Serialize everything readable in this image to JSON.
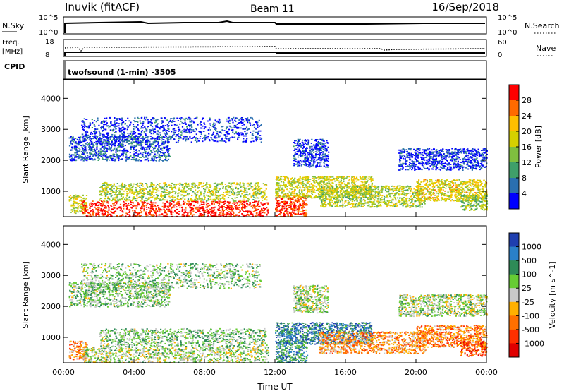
{
  "header": {
    "station": "Inuvik (fitACF)",
    "beam": "Beam 11",
    "date": "16/Sep/2018"
  },
  "top_panel": {
    "nsky_label": "N.Sky",
    "nsky_ticks": [
      "10^5",
      "10^0"
    ],
    "nsearch_label": "N.Search",
    "nsearch_ticks": [
      "10^5",
      "10^0"
    ],
    "freq_label": "Freq.",
    "freq_unit": "[MHz]",
    "freq_ticks": [
      "18",
      "8"
    ],
    "nave_label": "Nave",
    "nave_ticks": [
      "60",
      "0"
    ],
    "cpid_label": "CPID",
    "cpid_value": "twofsound (1-min) -3505"
  },
  "chart_data": [
    {
      "type": "heatmap",
      "name": "power",
      "ylabel": "Slant Range [km]",
      "xlabel": "",
      "ylim": [
        180,
        4600
      ],
      "yticks": [
        1000,
        2000,
        3000,
        4000
      ],
      "xlim": [
        0,
        24
      ],
      "x_ticks": [
        "00:00",
        "04:00",
        "08:00",
        "12:00",
        "16:00",
        "20:00",
        "00:00"
      ],
      "colorbar": {
        "label": "Power [dB]",
        "ticks": [
          "28",
          "24",
          "20",
          "16",
          "12",
          "8",
          "4"
        ],
        "colors": [
          "#ff0000",
          "#ff6a00",
          "#ffbf00",
          "#d6d100",
          "#7fbf3f",
          "#3f9f6a",
          "#2a6fb0",
          "#0000ff"
        ]
      },
      "regions": [
        {
          "t0": 0.3,
          "t1": 1.3,
          "r0": 300,
          "r1": 900,
          "level": 0.55
        },
        {
          "t0": 1.0,
          "t1": 11.6,
          "r0": 200,
          "r1": 700,
          "level": 0.95
        },
        {
          "t0": 2.0,
          "t1": 11.5,
          "r0": 700,
          "r1": 1300,
          "level": 0.5
        },
        {
          "t0": 0.3,
          "t1": 6.0,
          "r0": 2000,
          "r1": 2800,
          "level": 0.15
        },
        {
          "t0": 1.0,
          "t1": 11.2,
          "r0": 2600,
          "r1": 3400,
          "level": 0.1
        },
        {
          "t0": 12.0,
          "t1": 13.8,
          "r0": 200,
          "r1": 900,
          "level": 0.9
        },
        {
          "t0": 12.0,
          "t1": 17.5,
          "r0": 800,
          "r1": 1500,
          "level": 0.55
        },
        {
          "t0": 13.0,
          "t1": 15.0,
          "r0": 1800,
          "r1": 2700,
          "level": 0.1
        },
        {
          "t0": 14.5,
          "t1": 20.5,
          "r0": 500,
          "r1": 1200,
          "level": 0.5
        },
        {
          "t0": 20.0,
          "t1": 24.0,
          "r0": 700,
          "r1": 1400,
          "level": 0.6
        },
        {
          "t0": 19.0,
          "t1": 24.0,
          "r0": 1700,
          "r1": 2400,
          "level": 0.1
        },
        {
          "t0": 22.5,
          "t1": 24.0,
          "r0": 400,
          "r1": 900,
          "level": 0.45
        }
      ]
    },
    {
      "type": "heatmap",
      "name": "velocity",
      "ylabel": "Slant Range [km]",
      "xlabel": "Time UT",
      "ylim": [
        180,
        4600
      ],
      "yticks": [
        1000,
        2000,
        3000,
        4000
      ],
      "xlim": [
        0,
        24
      ],
      "x_ticks": [
        "00:00",
        "04:00",
        "08:00",
        "12:00",
        "16:00",
        "20:00",
        "00:00"
      ],
      "colorbar": {
        "label": "Velocity [m s^-1]",
        "ticks": [
          "1000",
          "500",
          "100",
          "25",
          "-25",
          "-100",
          "-500",
          "-1000"
        ],
        "colors": [
          "#1f3fb0",
          "#2a80c8",
          "#2e8b57",
          "#66cc33",
          "#c8c8c8",
          "#ffb000",
          "#ff7000",
          "#ff3000",
          "#e00000"
        ]
      },
      "regions": [
        {
          "t0": 0.3,
          "t1": 1.3,
          "r0": 300,
          "r1": 900,
          "level": 0.7
        },
        {
          "t0": 1.0,
          "t1": 11.6,
          "r0": 200,
          "r1": 700,
          "level": 0.45
        },
        {
          "t0": 2.0,
          "t1": 11.5,
          "r0": 700,
          "r1": 1300,
          "level": 0.4
        },
        {
          "t0": 0.3,
          "t1": 6.0,
          "r0": 2000,
          "r1": 2800,
          "level": 0.4
        },
        {
          "t0": 1.0,
          "t1": 11.2,
          "r0": 2600,
          "r1": 3400,
          "level": 0.4
        },
        {
          "t0": 12.0,
          "t1": 13.8,
          "r0": 200,
          "r1": 900,
          "level": 0.25
        },
        {
          "t0": 12.0,
          "t1": 17.5,
          "r0": 800,
          "r1": 1500,
          "level": 0.2
        },
        {
          "t0": 13.0,
          "t1": 15.0,
          "r0": 1800,
          "r1": 2700,
          "level": 0.45
        },
        {
          "t0": 14.5,
          "t1": 20.5,
          "r0": 500,
          "r1": 1200,
          "level": 0.65
        },
        {
          "t0": 20.0,
          "t1": 24.0,
          "r0": 700,
          "r1": 1400,
          "level": 0.7
        },
        {
          "t0": 19.0,
          "t1": 24.0,
          "r0": 1700,
          "r1": 2400,
          "level": 0.45
        },
        {
          "t0": 22.5,
          "t1": 24.0,
          "r0": 400,
          "r1": 900,
          "level": 0.8
        }
      ]
    }
  ]
}
